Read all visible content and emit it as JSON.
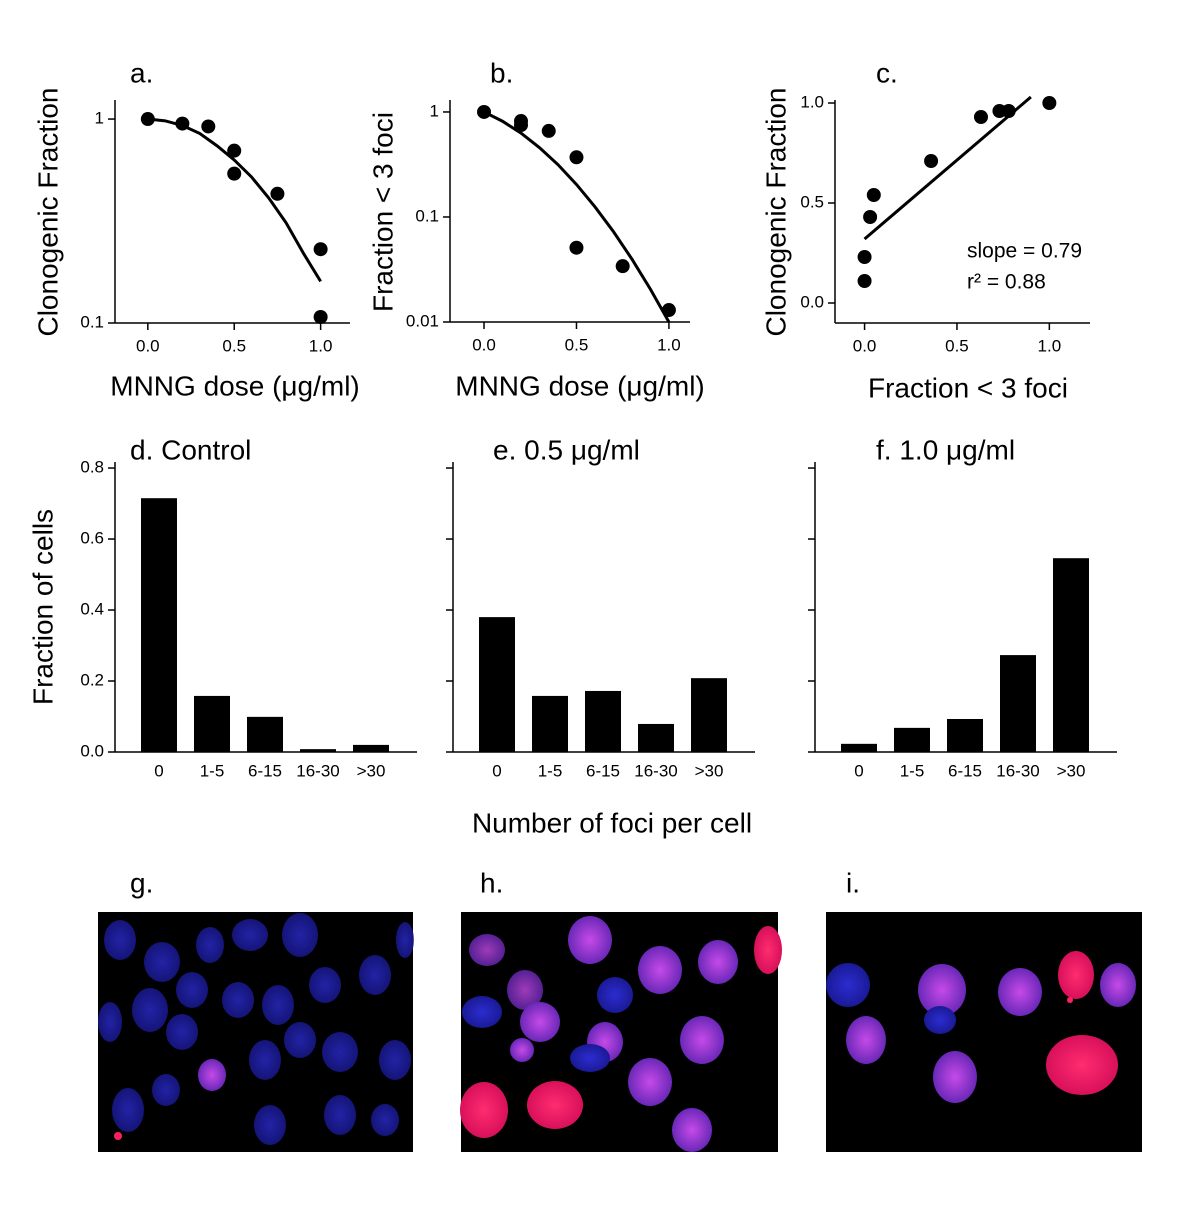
{
  "chart_data": [
    {
      "type": "scatter",
      "title": "a.",
      "ylabel": "Clonogenic Fraction",
      "xlabel": "MNNG dose (μg/ml)",
      "log_y": true,
      "xlim": [
        -0.19,
        1.17
      ],
      "xticks": [
        {
          "value": 0,
          "label": "0.0"
        },
        0.5,
        {
          "value": 1,
          "label": "1.0"
        }
      ],
      "ylim": [
        0.1,
        1.24
      ],
      "yticks": [
        0.1,
        1
      ],
      "color": "#000000",
      "x": [
        0,
        0.2,
        0.35,
        0.5,
        0.5,
        0.75,
        1.0,
        1.0
      ],
      "values": [
        1.0,
        0.95,
        0.92,
        0.7,
        0.54,
        0.43,
        0.23,
        0.107
      ],
      "fit_x": [
        0,
        0.1,
        0.2,
        0.3,
        0.4,
        0.5,
        0.6,
        0.7,
        0.8,
        0.9,
        1.0
      ],
      "fit_values": [
        1.0,
        0.98,
        0.93,
        0.85,
        0.74,
        0.63,
        0.52,
        0.41,
        0.31,
        0.22,
        0.16
      ]
    },
    {
      "type": "scatter",
      "title": "b.",
      "ylabel": "Fraction < 3 foci",
      "xlabel": "MNNG dose (μg/ml)",
      "log_y": true,
      "xlim": [
        -0.184,
        1.114
      ],
      "xticks": [
        {
          "value": 0,
          "label": "0.0"
        },
        0.5,
        {
          "value": 1,
          "label": "1.0"
        }
      ],
      "ylim": [
        0.01,
        1.3
      ],
      "yticks": [
        0.01,
        0.1,
        1
      ],
      "color": "#000000",
      "x": [
        0,
        0.2,
        0.2,
        0.35,
        0.5,
        0.5,
        0.75,
        1.0
      ],
      "values": [
        1.0,
        0.82,
        0.75,
        0.66,
        0.37,
        0.051,
        0.034,
        0.013
      ],
      "fit_x": [
        0,
        0.1,
        0.2,
        0.3,
        0.4,
        0.5,
        0.6,
        0.7,
        0.8,
        0.9,
        1.0
      ],
      "fit_values": [
        1.0,
        0.816,
        0.629,
        0.457,
        0.315,
        0.204,
        0.125,
        0.0725,
        0.0397,
        0.0205,
        0.01
      ]
    },
    {
      "type": "scatter",
      "title": "c.",
      "ylabel": "Clonogenic Fraction",
      "xlabel": "Fraction < 3 foci",
      "log_y": false,
      "xlim": [
        -0.16,
        1.22
      ],
      "xticks": [
        {
          "value": 0,
          "label": "0.0"
        },
        0.5,
        {
          "value": 1,
          "label": "1.0"
        }
      ],
      "ylim": [
        -0.1,
        1.015
      ],
      "yticks": [
        {
          "value": 0,
          "label": "0.0"
        },
        0.5,
        {
          "value": 1,
          "label": "1.0"
        }
      ],
      "color": "#000000",
      "x": [
        0.0,
        0.0,
        0.03,
        0.05,
        0.36,
        0.63,
        0.73,
        0.78,
        1.0
      ],
      "values": [
        0.23,
        0.11,
        0.43,
        0.54,
        0.71,
        0.93,
        0.96,
        0.96,
        1.0
      ],
      "fit_x": [
        0,
        0.9
      ],
      "fit_values": [
        0.32,
        1.03
      ],
      "annotations": [
        "slope = 0.79",
        "r² = 0.88"
      ]
    },
    {
      "type": "bar",
      "title": "d. Control",
      "ylabel": "Fraction of cells",
      "color": "#000000",
      "categories": [
        "0",
        "1-5",
        "6-15",
        "16-30",
        ">30"
      ],
      "values": [
        0.715,
        0.158,
        0.099,
        0.008,
        0.02
      ],
      "ylim": [
        0,
        0.817
      ],
      "yticks": [
        {
          "value": 0,
          "label": "0.0"
        },
        0.2,
        0.4,
        0.6,
        0.8
      ],
      "ytick_labels": true
    },
    {
      "type": "bar",
      "title": "e. 0.5 μg/ml",
      "xlabel": "Number of foci per cell",
      "color": "#000000",
      "categories": [
        "0",
        "1-5",
        "6-15",
        "16-30",
        ">30"
      ],
      "values": [
        0.38,
        0.158,
        0.172,
        0.079,
        0.208
      ],
      "ylim": [
        0,
        0.817
      ],
      "yticks": [
        0,
        0.2,
        0.4,
        0.6,
        0.8
      ],
      "ytick_labels": false
    },
    {
      "type": "bar",
      "title": "f. 1.0 μg/ml",
      "color": "#000000",
      "categories": [
        "0",
        "1-5",
        "6-15",
        "16-30",
        ">30"
      ],
      "values": [
        0.023,
        0.068,
        0.093,
        0.273,
        0.546
      ],
      "ylim": [
        0,
        0.817
      ],
      "yticks": [
        0,
        0.2,
        0.4,
        0.6,
        0.8
      ],
      "ytick_labels": false
    }
  ],
  "images": [
    {
      "label": "g."
    },
    {
      "label": "h."
    },
    {
      "label": "i."
    }
  ]
}
